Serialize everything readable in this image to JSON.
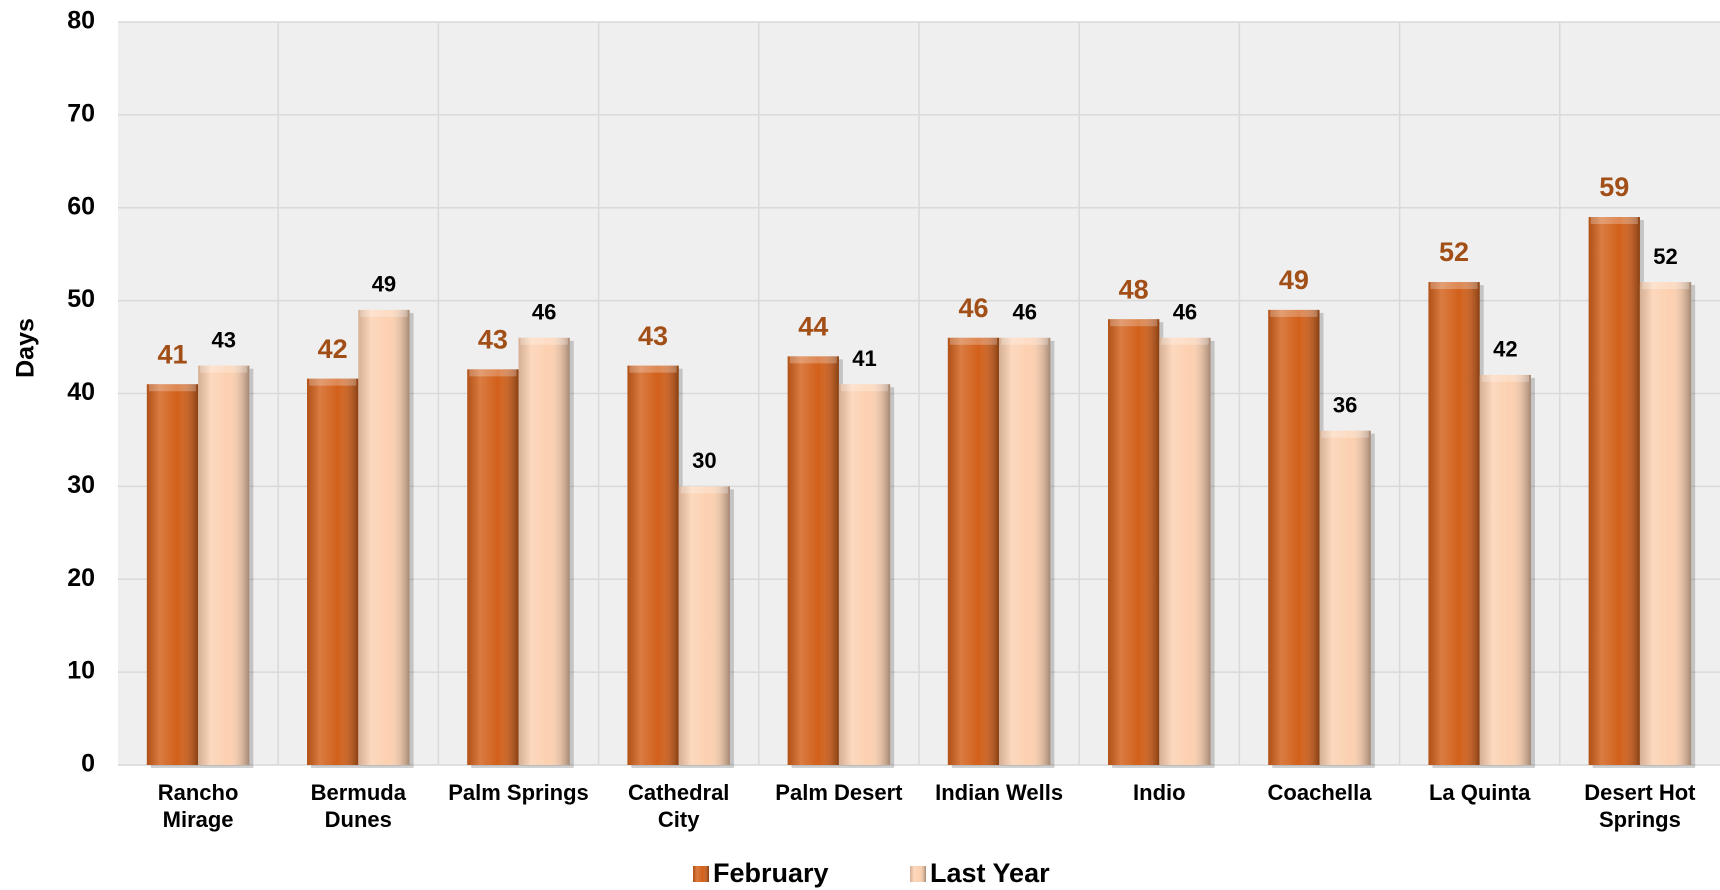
{
  "chart_data": {
    "type": "bar",
    "y_label": "Days",
    "categories": [
      [
        "Rancho",
        "Mirage"
      ],
      [
        "Bermuda",
        "Dunes"
      ],
      [
        "Palm Springs"
      ],
      [
        "Cathedral",
        "City"
      ],
      [
        "Palm Desert"
      ],
      [
        "Indian Wells"
      ],
      [
        "Indio"
      ],
      [
        "Coachella"
      ],
      [
        "La Quinta"
      ],
      [
        "Desert Hot",
        "Springs"
      ]
    ],
    "series": [
      {
        "name": "February",
        "color": "#d2601a",
        "label_color": "#a24e17",
        "values": [
          41,
          41.6,
          42.6,
          43,
          44,
          46,
          48,
          49,
          52,
          59
        ],
        "value_labels": [
          "41",
          "42",
          "43",
          "43",
          "44",
          "46",
          "48",
          "49",
          "52",
          "59"
        ]
      },
      {
        "name": "Last Year",
        "color": "#fcd0b0",
        "label_color": "#000000",
        "values": [
          43,
          49,
          46,
          30,
          41,
          46,
          46,
          36,
          42,
          52
        ]
      }
    ],
    "ylim": [
      0,
      80
    ],
    "yticks": [
      0,
      10,
      20,
      30,
      40,
      50,
      60,
      70,
      80
    ],
    "grid": true
  }
}
